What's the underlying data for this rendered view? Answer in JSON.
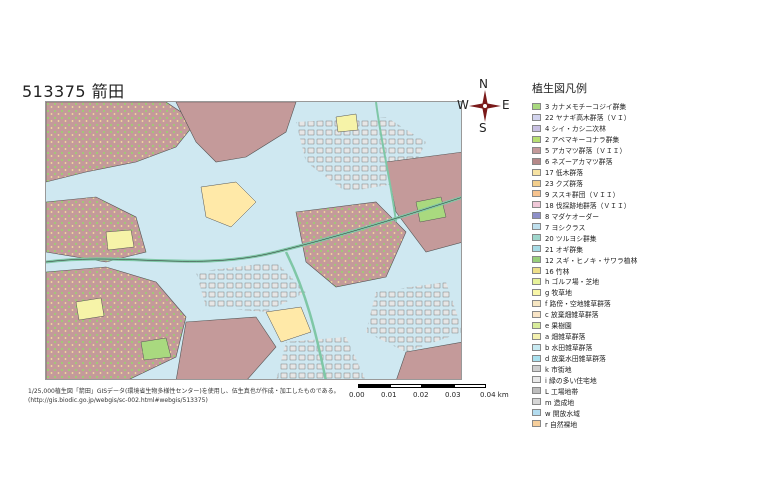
{
  "map": {
    "title": "513375 箭田",
    "credit_line1": "1/25,000植生図「箭田」GISデータ(環境省生物多様性センター)を使用し、伍生真也が作成・加工したものである。",
    "credit_line2": "(http://gis.biodic.go.jp/webgis/sc-002.html#webgis/513375)",
    "compass": {
      "n": "N",
      "s": "S",
      "e": "E",
      "w": "W"
    },
    "scale": {
      "labels": [
        "0.00",
        "0.01",
        "0.02",
        "0.03",
        "0.04 km"
      ]
    },
    "colors": {
      "water": "#cfe8f1",
      "forest": "#c49a9a",
      "field": "#ffe9a8",
      "residential": "#e6e6e6",
      "road": "#7fc7a6"
    }
  },
  "legend": {
    "title": "植生図凡例",
    "items": [
      {
        "label": "3 カナメモチーコジイ群集",
        "color": "#a9d97f"
      },
      {
        "label": "22 ヤナギ高木群落（ＶＩ）",
        "color": "#d2d4ee"
      },
      {
        "label": "4 シイ・カシ二次林",
        "color": "#c8c0e2"
      },
      {
        "label": "2 アベマキーコナラ群集",
        "color": "#b7df72"
      },
      {
        "label": "5 アカマツ群落（ＶＩＩ）",
        "color": "#c49a9a"
      },
      {
        "label": "6 ネズーアカマツ群落",
        "color": "#b58888"
      },
      {
        "label": "17 低木群落",
        "color": "#f7e3a3"
      },
      {
        "label": "23 クズ群落",
        "color": "#f3cf8d"
      },
      {
        "label": "9 ススキ群団（ＶＩＩ）",
        "color": "#f6c38f"
      },
      {
        "label": "18 伐採跡地群落（ＶＩＩ）",
        "color": "#f0c8d8"
      },
      {
        "label": "8 マダケオーダー",
        "color": "#8d8fc8"
      },
      {
        "label": "7 ヨシクラス",
        "color": "#bfe0ee"
      },
      {
        "label": "20 ツルヨシ群集",
        "color": "#9fd6cc"
      },
      {
        "label": "21 オギ群集",
        "color": "#a7dbe6"
      },
      {
        "label": "12 スギ・ヒノキ・サワラ植林",
        "color": "#97ce7a"
      },
      {
        "label": "16 竹林",
        "color": "#eedf8a"
      },
      {
        "label": "h ゴルフ場・芝地",
        "color": "#e7f29a"
      },
      {
        "label": "g 牧草地",
        "color": "#f8f6a8"
      },
      {
        "label": "f 路傍・空地雑草群落",
        "color": "#f6e6c2"
      },
      {
        "label": "c 放棄畑雑草群落",
        "color": "#f8e4c6"
      },
      {
        "label": "e 果樹園",
        "color": "#d8ec9c"
      },
      {
        "label": "a 畑雑草群落",
        "color": "#f4f1b0"
      },
      {
        "label": "b 水田雑草群落",
        "color": "#c8eaf2"
      },
      {
        "label": "d 放棄水田雑草群落",
        "color": "#a9e0ee"
      },
      {
        "label": "k 市街地",
        "color": "#cfcfcf"
      },
      {
        "label": "i 緑の多い住宅地",
        "color": "#e8e8e8"
      },
      {
        "label": "L 工場地帯",
        "color": "#bdbdbd"
      },
      {
        "label": "m 造成地",
        "color": "#d6d6d6"
      },
      {
        "label": "w 開放水域",
        "color": "#b3dcef"
      },
      {
        "label": "r 自然裸地",
        "color": "#f6cf9c"
      }
    ]
  }
}
